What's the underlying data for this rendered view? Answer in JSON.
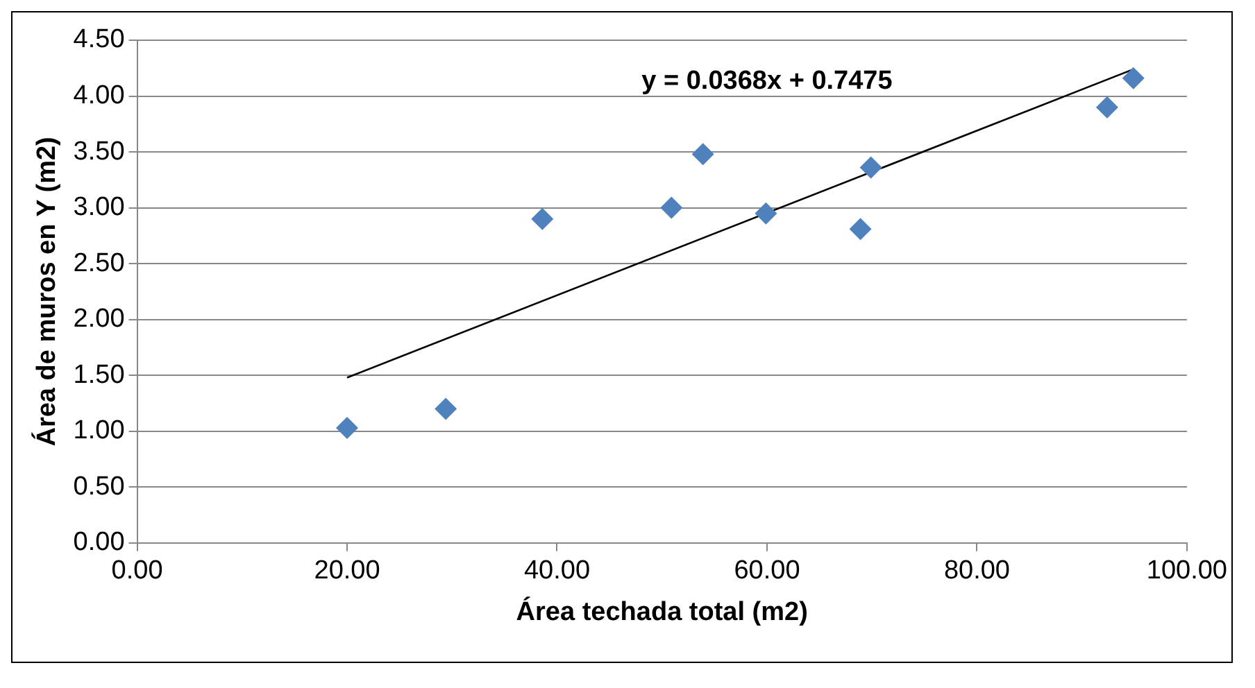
{
  "chart_data": {
    "type": "scatter",
    "xlabel": "Área techada total (m2)",
    "ylabel": "Área de muros en Y (m2)",
    "annotations": [
      "y = 0.0368x + 0.7475"
    ],
    "series": [
      {
        "color": "#4f81bd",
        "marker": "diamond",
        "x": [
          20.0,
          29.4,
          38.6,
          50.9,
          53.9,
          59.9,
          68.9,
          69.9,
          92.4,
          94.9
        ],
        "values": [
          1.03,
          1.2,
          2.9,
          3.0,
          3.48,
          2.95,
          2.81,
          3.36,
          3.9,
          4.16
        ]
      },
      {
        "type": "line",
        "color": "#000000",
        "marker": "none",
        "x": [
          20.0,
          94.9
        ],
        "values": [
          1.48,
          4.24
        ]
      }
    ],
    "xlim": [
      0,
      100
    ],
    "xticks": [
      {
        "value": 0,
        "label": "0.00"
      },
      {
        "value": 20,
        "label": "20.00"
      },
      {
        "value": 40,
        "label": "40.00"
      },
      {
        "value": 60,
        "label": "60.00"
      },
      {
        "value": 80,
        "label": "80.00"
      },
      {
        "value": 100,
        "label": "100.00"
      }
    ],
    "ylim": [
      0,
      4.5
    ],
    "yticks": [
      {
        "value": 0,
        "label": "0.00"
      },
      {
        "value": 0.5,
        "label": "0.50"
      },
      {
        "value": 1,
        "label": "1.00"
      },
      {
        "value": 1.5,
        "label": "1.50"
      },
      {
        "value": 2,
        "label": "2.00"
      },
      {
        "value": 2.5,
        "label": "2.50"
      },
      {
        "value": 3,
        "label": "3.00"
      },
      {
        "value": 3.5,
        "label": "3.50"
      },
      {
        "value": 4,
        "label": "4.00"
      },
      {
        "value": 4.5,
        "label": "4.50"
      }
    ],
    "grid": "y",
    "legend": false
  }
}
